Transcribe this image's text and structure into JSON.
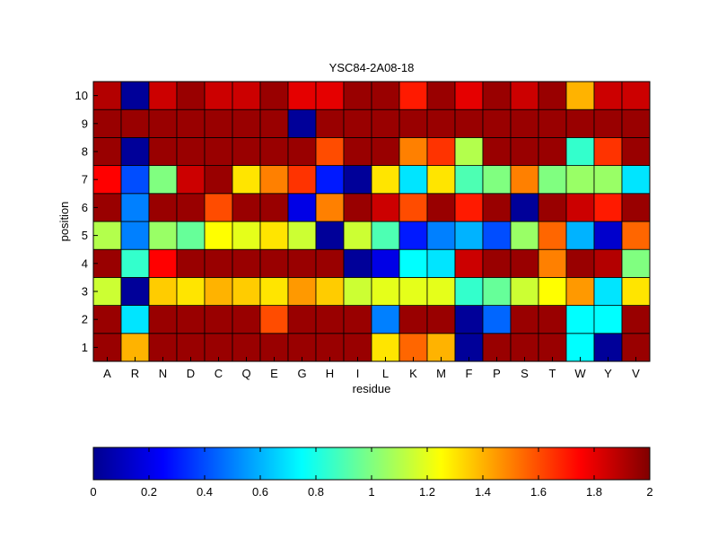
{
  "chart_data": {
    "type": "heatmap",
    "title": "YSC84-2A08-18",
    "xlabel": "residue",
    "ylabel": "position",
    "x_categories": [
      "A",
      "R",
      "N",
      "D",
      "C",
      "Q",
      "E",
      "G",
      "H",
      "I",
      "L",
      "K",
      "M",
      "F",
      "P",
      "S",
      "T",
      "W",
      "Y",
      "V"
    ],
    "y_categories": [
      "1",
      "2",
      "3",
      "4",
      "5",
      "6",
      "7",
      "8",
      "9",
      "10"
    ],
    "value_range": [
      0,
      2
    ],
    "colormap": "jet",
    "colorbar": {
      "ticks": [
        0,
        0.2,
        0.4,
        0.6,
        0.8,
        1,
        1.2,
        1.4,
        1.6,
        1.8,
        2
      ],
      "tick_labels": [
        "0",
        "0.2",
        "0.4",
        "0.6",
        "0.8",
        "1",
        "1.2",
        "1.4",
        "1.6",
        "1.8",
        "2"
      ],
      "orientation": "horizontal"
    },
    "rows": [
      {
        "position": "1",
        "values": [
          1.95,
          1.4,
          1.95,
          1.95,
          1.95,
          1.95,
          1.95,
          1.95,
          1.95,
          1.95,
          1.3,
          1.55,
          1.4,
          0.05,
          1.95,
          1.95,
          1.95,
          0.75,
          0.05,
          1.95
        ]
      },
      {
        "position": "2",
        "values": [
          1.95,
          0.7,
          1.95,
          1.95,
          1.95,
          1.95,
          1.6,
          1.95,
          1.95,
          1.95,
          0.5,
          1.95,
          1.95,
          0.05,
          0.45,
          1.95,
          1.95,
          0.75,
          0.75,
          1.95
        ]
      },
      {
        "position": "3",
        "values": [
          1.15,
          0.05,
          1.35,
          1.3,
          1.4,
          1.35,
          1.3,
          1.45,
          1.35,
          1.15,
          1.2,
          1.2,
          1.2,
          0.85,
          0.95,
          1.15,
          1.25,
          1.45,
          0.7,
          1.3
        ]
      },
      {
        "position": "4",
        "values": [
          1.95,
          0.85,
          1.75,
          1.95,
          1.95,
          1.95,
          1.95,
          1.95,
          1.95,
          0.05,
          0.2,
          0.75,
          0.7,
          1.85,
          1.95,
          1.95,
          1.5,
          1.95,
          1.9,
          1.0
        ]
      },
      {
        "position": "5",
        "values": [
          1.1,
          0.5,
          1.05,
          0.95,
          1.25,
          1.2,
          1.3,
          1.15,
          0.05,
          1.15,
          0.9,
          0.3,
          0.5,
          0.6,
          0.4,
          1.05,
          1.55,
          0.6,
          0.15,
          1.55
        ]
      },
      {
        "position": "6",
        "values": [
          1.95,
          0.5,
          1.95,
          1.95,
          1.6,
          1.95,
          1.95,
          0.2,
          1.5,
          1.95,
          1.85,
          1.6,
          1.95,
          1.7,
          1.95,
          0.05,
          1.95,
          1.85,
          1.7,
          1.95
        ]
      },
      {
        "position": "7",
        "values": [
          1.75,
          0.4,
          1.0,
          1.85,
          1.95,
          1.3,
          1.5,
          1.65,
          0.3,
          0.05,
          1.3,
          0.7,
          1.3,
          0.9,
          1.0,
          1.5,
          1.0,
          1.05,
          1.05,
          0.7
        ]
      },
      {
        "position": "8",
        "values": [
          1.95,
          0.05,
          1.95,
          1.95,
          1.95,
          1.95,
          1.95,
          1.95,
          1.6,
          1.95,
          1.95,
          1.5,
          1.65,
          1.1,
          1.95,
          1.95,
          1.95,
          0.85,
          1.65,
          1.95
        ]
      },
      {
        "position": "9",
        "values": [
          1.95,
          1.95,
          1.95,
          1.95,
          1.95,
          1.95,
          1.95,
          0.05,
          1.95,
          1.95,
          1.95,
          1.95,
          1.95,
          1.95,
          1.95,
          1.95,
          1.95,
          1.95,
          1.95,
          1.95
        ]
      },
      {
        "position": "10",
        "values": [
          1.9,
          0.05,
          1.85,
          1.95,
          1.85,
          1.85,
          1.95,
          1.8,
          1.8,
          1.95,
          1.95,
          1.7,
          1.95,
          1.8,
          1.95,
          1.85,
          1.95,
          1.4,
          1.85,
          1.85
        ]
      }
    ]
  }
}
